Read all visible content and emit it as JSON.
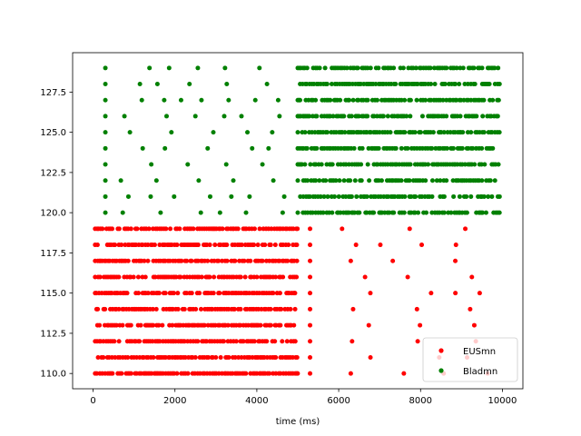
{
  "chart_data": {
    "type": "scatter",
    "title": "",
    "xlabel": "time (ms)",
    "ylabel": "",
    "xlim": [
      -500,
      10500
    ],
    "ylim": [
      109.05,
      129.95
    ],
    "xticks": [
      0,
      2000,
      4000,
      6000,
      8000,
      10000
    ],
    "xtick_labels": [
      "0",
      "2000",
      "4000",
      "6000",
      "8000",
      "10000"
    ],
    "yticks": [
      110.0,
      112.5,
      115.0,
      117.5,
      120.0,
      122.5,
      125.0,
      127.5
    ],
    "ytick_labels": [
      "110.0",
      "112.5",
      "115.0",
      "117.5",
      "120.0",
      "122.5",
      "125.0",
      "127.5"
    ],
    "grid": false,
    "legend_position": "lower-right",
    "series": [
      {
        "name": "EUSmn",
        "color": "#ff0000",
        "neurons": [
          110,
          111,
          112,
          113,
          114,
          115,
          116,
          117,
          118,
          119
        ],
        "dense": {
          "x_start": 50,
          "x_end": 5000,
          "mean_isi_ms": 50,
          "on_fraction": 0.82
        },
        "sparse": {
          "x_start": 5300,
          "x_end": 9950,
          "mean_isi_ms": 1150
        }
      },
      {
        "name": "Bladmn",
        "color": "#008000",
        "neurons": [
          120,
          121,
          122,
          123,
          124,
          125,
          126,
          127,
          128,
          129
        ],
        "sparse": {
          "x_start": 300,
          "x_end": 5000,
          "mean_isi_ms": 750
        },
        "dense": {
          "x_start": 5000,
          "x_end": 9950,
          "mean_isi_ms": 50,
          "on_fraction": 0.78
        }
      }
    ]
  }
}
